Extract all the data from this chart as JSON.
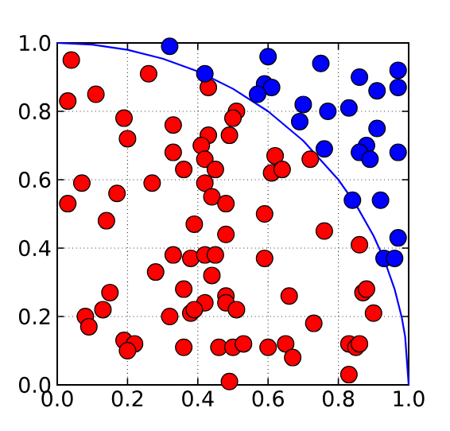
{
  "chart_data": {
    "type": "scatter",
    "xlim": [
      0,
      1
    ],
    "ylim": [
      0,
      1
    ],
    "xticks": [
      {
        "value": 0,
        "label": "0.0"
      },
      0.2,
      0.4,
      0.6,
      0.8,
      {
        "value": 1,
        "label": "1.0"
      }
    ],
    "yticks": [
      {
        "value": 0,
        "label": "0.0"
      },
      0.2,
      0.4,
      0.6,
      0.8,
      {
        "value": 1,
        "label": "1.0"
      }
    ],
    "grid": true,
    "series": [
      {
        "type": "scatter",
        "color": "#ff0000",
        "marker": "circle",
        "x": [
          0.04,
          0.26,
          0.43,
          0.03,
          0.11,
          0.51,
          0.5,
          0.19,
          0.2,
          0.33,
          0.43,
          0.49,
          0.41,
          0.42,
          0.33,
          0.36,
          0.45,
          0.07,
          0.27,
          0.42,
          0.17,
          0.44,
          0.48,
          0.03,
          0.14,
          0.39,
          0.48,
          0.33,
          0.38,
          0.42,
          0.45,
          0.28,
          0.44,
          0.15,
          0.36,
          0.42,
          0.48,
          0.48,
          0.51,
          0.08,
          0.13,
          0.09,
          0.32,
          0.38,
          0.39,
          0.19,
          0.22,
          0.2,
          0.36,
          0.46,
          0.5,
          0.49,
          0.62,
          0.72,
          0.61,
          0.64,
          0.59,
          0.76,
          0.86,
          0.59,
          0.66,
          0.87,
          0.88,
          0.9,
          0.73,
          0.53,
          0.6,
          0.65,
          0.67,
          0.83,
          0.85,
          0.86,
          0.83
        ],
        "values": [
          0.95,
          0.91,
          0.87,
          0.83,
          0.85,
          0.8,
          0.78,
          0.78,
          0.72,
          0.76,
          0.73,
          0.73,
          0.7,
          0.66,
          0.68,
          0.63,
          0.63,
          0.59,
          0.59,
          0.59,
          0.56,
          0.55,
          0.53,
          0.53,
          0.48,
          0.47,
          0.44,
          0.38,
          0.37,
          0.38,
          0.38,
          0.33,
          0.32,
          0.27,
          0.28,
          0.24,
          0.26,
          0.24,
          0.22,
          0.2,
          0.22,
          0.17,
          0.2,
          0.21,
          0.22,
          0.13,
          0.12,
          0.1,
          0.11,
          0.11,
          0.11,
          0.01,
          0.67,
          0.66,
          0.62,
          0.63,
          0.5,
          0.45,
          0.41,
          0.37,
          0.26,
          0.27,
          0.28,
          0.21,
          0.18,
          0.12,
          0.11,
          0.12,
          0.08,
          0.12,
          0.11,
          0.12,
          0.03
        ]
      },
      {
        "type": "scatter",
        "color": "#0000ff",
        "marker": "circle",
        "x": [
          0.32,
          0.42,
          0.6,
          0.75,
          0.59,
          0.61,
          0.57,
          0.86,
          0.91,
          0.97,
          0.97,
          0.7,
          0.69,
          0.77,
          0.83,
          0.91,
          0.76,
          0.88,
          0.86,
          0.89,
          0.97,
          0.84,
          0.92,
          0.97,
          0.93,
          0.96
        ],
        "values": [
          0.99,
          0.91,
          0.96,
          0.94,
          0.88,
          0.87,
          0.85,
          0.9,
          0.86,
          0.92,
          0.87,
          0.82,
          0.77,
          0.8,
          0.81,
          0.75,
          0.69,
          0.7,
          0.68,
          0.66,
          0.68,
          0.54,
          0.54,
          0.43,
          0.37,
          0.37
        ]
      },
      {
        "type": "line",
        "color": "#0000ff",
        "marker": "none",
        "line_style": "solid",
        "x": [
          0,
          0.1,
          0.2,
          0.3,
          0.4,
          0.5,
          0.6,
          0.7,
          0.8,
          0.85,
          0.9,
          0.93,
          0.96,
          0.98,
          0.99,
          1.0
        ],
        "values": [
          1,
          0.995,
          0.98,
          0.954,
          0.917,
          0.866,
          0.8,
          0.714,
          0.6,
          0.527,
          0.436,
          0.368,
          0.28,
          0.199,
          0.141,
          0
        ]
      }
    ]
  }
}
